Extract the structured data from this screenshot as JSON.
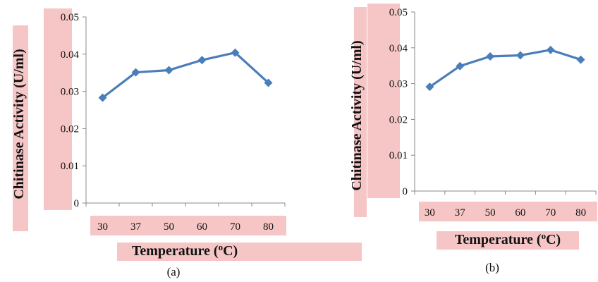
{
  "chart_data": [
    {
      "type": "line",
      "caption": "(a)",
      "xlabel_main": "Temperature (",
      "xlabel_sup": "o",
      "xlabel_end": "C)",
      "ylabel": "Chitinase Activity (U/ml)",
      "categories": [
        "30",
        "37",
        "50",
        "60",
        "70",
        "80"
      ],
      "values": [
        0.0283,
        0.0351,
        0.0357,
        0.0384,
        0.0404,
        0.0323
      ],
      "ylim": [
        0,
        0.05
      ],
      "yticks": [
        "0",
        "0.01",
        "0.02",
        "0.03",
        "0.04",
        "0.05"
      ],
      "grid": false,
      "color": "#4a7ebb"
    },
    {
      "type": "line",
      "caption": "(b)",
      "xlabel_main": "Temperature (",
      "xlabel_sup": "o",
      "xlabel_end": "C)",
      "ylabel": "Chitinase Activity (U/ml)",
      "categories": [
        "30",
        "37",
        "50",
        "60",
        "70",
        "80"
      ],
      "values": [
        0.0291,
        0.0349,
        0.0376,
        0.0379,
        0.0394,
        0.0367
      ],
      "ylim": [
        0,
        0.05
      ],
      "yticks": [
        "0",
        "0.01",
        "0.02",
        "0.03",
        "0.04",
        "0.05"
      ],
      "grid": false,
      "color": "#4a7ebb"
    }
  ]
}
